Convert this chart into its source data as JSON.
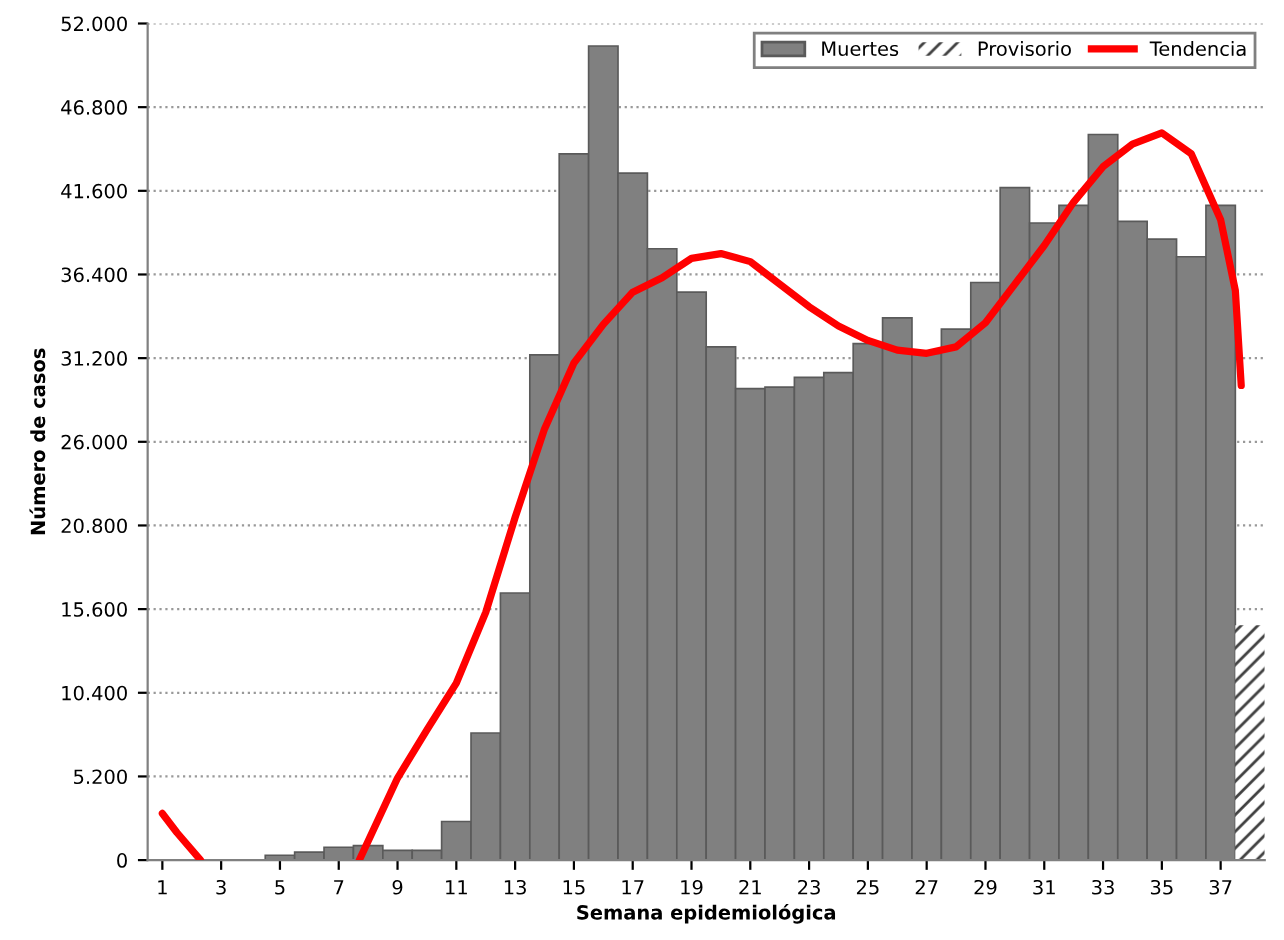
{
  "chart_data": {
    "type": "bar",
    "xlabel": "Semana epidemiológica",
    "ylabel": "Número de casos",
    "x": [
      1,
      2,
      3,
      4,
      5,
      6,
      7,
      8,
      9,
      10,
      11,
      12,
      13,
      14,
      15,
      16,
      17,
      18,
      19,
      20,
      21,
      22,
      23,
      24,
      25,
      26,
      27,
      28,
      29,
      30,
      31,
      32,
      33,
      34,
      35,
      36,
      37,
      38
    ],
    "series": [
      {
        "name": "Muertes",
        "color": "#808080",
        "values": [
          0,
          0,
          null,
          null,
          300,
          500,
          800,
          900,
          600,
          600,
          2400,
          7900,
          16600,
          31400,
          43900,
          50600,
          42700,
          38000,
          35300,
          31900,
          29300,
          29400,
          30000,
          30300,
          32100,
          33700,
          31500,
          33000,
          35900,
          41800,
          39600,
          40700,
          45100,
          39700,
          38600,
          37500,
          40700,
          null
        ]
      },
      {
        "name": "Provisorio",
        "color": "#ffffff",
        "values": [
          null,
          null,
          null,
          null,
          null,
          null,
          null,
          null,
          null,
          null,
          null,
          null,
          null,
          null,
          null,
          null,
          null,
          null,
          null,
          null,
          null,
          null,
          null,
          null,
          null,
          null,
          null,
          null,
          null,
          null,
          null,
          null,
          null,
          null,
          null,
          null,
          null,
          14600
        ]
      },
      {
        "name": "Tendencia",
        "type": "line",
        "color": "#ff0000",
        "x": [
          1,
          1.5,
          2.3,
          null,
          7.7,
          9,
          10,
          11,
          12,
          13,
          14,
          15,
          16,
          17,
          18,
          19,
          20,
          21,
          22,
          23,
          24,
          25,
          26,
          27,
          28,
          29,
          30,
          31,
          32,
          33,
          34,
          35,
          36,
          37,
          37.5,
          37.7
        ],
        "values": [
          2900,
          1700,
          0,
          null,
          0,
          5100,
          8100,
          11000,
          15400,
          21300,
          26800,
          30900,
          33300,
          35300,
          36200,
          37400,
          37700,
          37200,
          35800,
          34400,
          33200,
          32300,
          31700,
          31500,
          31900,
          33400,
          35800,
          38200,
          40900,
          43100,
          44500,
          45200,
          43900,
          39800,
          35400,
          29500
        ]
      }
    ],
    "xlim": [
      0.5,
      38.5
    ],
    "xticks": [
      1,
      3,
      5,
      7,
      9,
      11,
      13,
      15,
      17,
      19,
      21,
      23,
      25,
      27,
      29,
      31,
      33,
      35,
      37
    ],
    "ylim": [
      0,
      52000
    ],
    "yticks": [
      0,
      {
        "value": 5200,
        "label": "5.200"
      },
      {
        "value": 10400,
        "label": "10.400"
      },
      {
        "value": 15600,
        "label": "15.600"
      },
      {
        "value": 20800,
        "label": "20.800"
      },
      {
        "value": 26000,
        "label": "26.000"
      },
      {
        "value": 31200,
        "label": "31.200"
      },
      {
        "value": 36400,
        "label": "36.400"
      },
      {
        "value": 41600,
        "label": "41.600"
      },
      {
        "value": 46800,
        "label": "46.800"
      },
      {
        "value": 52000,
        "label": "52.000"
      }
    ],
    "grid": "y",
    "legend": "top right",
    "line_style": "solid",
    "marker": "none"
  }
}
